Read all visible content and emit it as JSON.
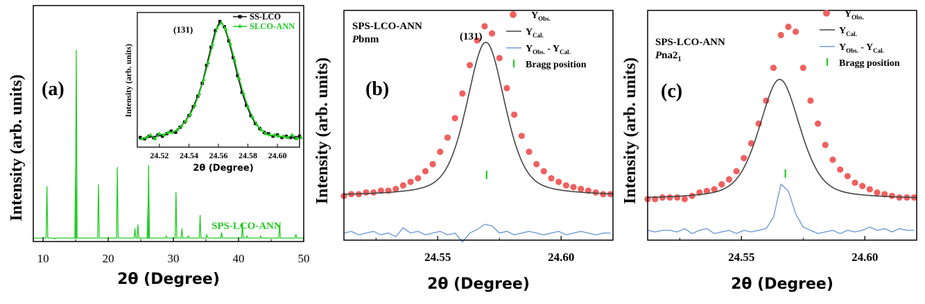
{
  "chart_data": [
    {
      "panel": "a",
      "type": "line",
      "panel_label": "(a)",
      "xlabel": "2θ (Degree)",
      "ylabel": "Intensity (arb. units)",
      "xlim": [
        8.5,
        50
      ],
      "xticks": [
        "10",
        "20",
        "30",
        "40",
        "50"
      ],
      "series_label": "SPS-LCO-ANN",
      "color": "#22cc22",
      "baseline": 2,
      "peaks": [
        {
          "x": 10.6,
          "y": 29
        },
        {
          "x": 11.8,
          "y": 1.5
        },
        {
          "x": 15.1,
          "y": 100
        },
        {
          "x": 15.0,
          "y": 40
        },
        {
          "x": 18.5,
          "y": 30
        },
        {
          "x": 21.4,
          "y": 39
        },
        {
          "x": 22.1,
          "y": 2
        },
        {
          "x": 24.1,
          "y": 7
        },
        {
          "x": 24.56,
          "y": 9
        },
        {
          "x": 26.2,
          "y": 40
        },
        {
          "x": 26.1,
          "y": 18
        },
        {
          "x": 28.9,
          "y": 3
        },
        {
          "x": 30.4,
          "y": 26
        },
        {
          "x": 31.3,
          "y": 7
        },
        {
          "x": 32.3,
          "y": 3
        },
        {
          "x": 34.1,
          "y": 14
        },
        {
          "x": 35.1,
          "y": 4
        },
        {
          "x": 37.4,
          "y": 5
        },
        {
          "x": 38.8,
          "y": 2
        },
        {
          "x": 40.6,
          "y": 10
        },
        {
          "x": 41.3,
          "y": 3
        },
        {
          "x": 43.4,
          "y": 3
        },
        {
          "x": 44.6,
          "y": 2
        },
        {
          "x": 46.3,
          "y": 9
        },
        {
          "x": 48.8,
          "y": 4
        }
      ],
      "inset": {
        "type": "line",
        "annotation": "(131)",
        "xlabel": "2θ (Degree)",
        "ylabel": "Intensity (arb. units)",
        "xlim": [
          24.505,
          24.615
        ],
        "xticks": [
          "24.52",
          "24.54",
          "24.56",
          "24.58",
          "24.60"
        ],
        "series": [
          {
            "name": "SS-LCO",
            "color": "#111111",
            "marker": "square",
            "x0": 24.507,
            "step": 0.003,
            "values": [
              0.1,
              0.09,
              0.11,
              0.1,
              0.12,
              0.11,
              0.13,
              0.15,
              0.14,
              0.18,
              0.22,
              0.27,
              0.34,
              0.42,
              0.52,
              0.66,
              0.8,
              0.93,
              1.0,
              0.96,
              0.85,
              0.72,
              0.58,
              0.45,
              0.35,
              0.27,
              0.21,
              0.17,
              0.14,
              0.13,
              0.11,
              0.12,
              0.1,
              0.11,
              0.1,
              0.1,
              0.11
            ]
          },
          {
            "name": "SLCO-ANN",
            "color": "#22cc22",
            "marker": "triangle",
            "x0": 24.508,
            "step": 0.003,
            "values": [
              0.09,
              0.1,
              0.12,
              0.09,
              0.13,
              0.12,
              0.14,
              0.14,
              0.16,
              0.19,
              0.23,
              0.28,
              0.35,
              0.44,
              0.55,
              0.68,
              0.82,
              0.95,
              0.99,
              0.94,
              0.83,
              0.7,
              0.56,
              0.44,
              0.34,
              0.26,
              0.2,
              0.16,
              0.13,
              0.12,
              0.12,
              0.11,
              0.11,
              0.1,
              0.12,
              0.09,
              0.1
            ]
          }
        ]
      }
    },
    {
      "panel": "b",
      "type": "line",
      "panel_label": "(b)",
      "title_line1": "SPS-LCO-ANN",
      "title_italic": "P",
      "title_rest": "bnm",
      "annotation": "(131)",
      "xlabel": "2θ (Degree)",
      "ylabel": "Intensity (arb. units)",
      "xlim": [
        24.512,
        24.621
      ],
      "ylim": [
        -0.25,
        1.05
      ],
      "xticks": [
        "24.55",
        "24.60"
      ],
      "tick_values": [
        24.55,
        24.6
      ],
      "bragg_position": 24.5698,
      "legend": {
        "obs_main": "Y",
        "obs_sub": "Obs.",
        "cal_main": "Y",
        "cal_sub": "Cal.",
        "diff_main1": "Y",
        "diff_sub1": "Obs.",
        "diff_sep": " - ",
        "diff_main2": "Y",
        "diff_sub2": "Cal.",
        "bragg": "Bragg position"
      },
      "colors": {
        "obs": "#f06060",
        "cal": "#444444",
        "diff": "#6f9ad8",
        "bragg": "#22cc22"
      },
      "calc": {
        "base": 0.0,
        "amp": 0.87,
        "center": 24.5695,
        "width": 0.0092
      },
      "x_obs": [
        24.512,
        24.515,
        24.518,
        24.521,
        24.524,
        24.527,
        24.53,
        24.533,
        24.536,
        24.539,
        24.542,
        24.545,
        24.548,
        24.551,
        24.554,
        24.557,
        24.56,
        24.563,
        24.566,
        24.569,
        24.572,
        24.575,
        24.578,
        24.581,
        24.584,
        24.587,
        24.59,
        24.593,
        24.596,
        24.599,
        24.602,
        24.605,
        24.608,
        24.611,
        24.614,
        24.617,
        24.62
      ],
      "y_obs": [
        0.0,
        0.01,
        0.01,
        0.02,
        0.02,
        0.03,
        0.03,
        0.04,
        0.06,
        0.08,
        0.1,
        0.14,
        0.18,
        0.25,
        0.33,
        0.44,
        0.58,
        0.74,
        0.88,
        0.96,
        0.92,
        0.78,
        0.61,
        0.46,
        0.34,
        0.25,
        0.18,
        0.14,
        0.1,
        0.08,
        0.06,
        0.05,
        0.04,
        0.03,
        0.02,
        0.01,
        0.01
      ],
      "diff_offset": -0.21,
      "y_diff": [
        0.0,
        0.01,
        -0.01,
        0.0,
        0.01,
        -0.01,
        0.0,
        -0.02,
        0.03,
        0.0,
        0.01,
        -0.01,
        0.0,
        0.01,
        -0.01,
        0.0,
        -0.05,
        0.0,
        0.02,
        0.05,
        0.04,
        0.0,
        0.01,
        -0.01,
        0.0,
        0.01,
        0.0,
        -0.01,
        0.0,
        0.01,
        -0.01,
        0.0,
        0.01,
        0.0,
        -0.01,
        0.0,
        0.0
      ]
    },
    {
      "panel": "c",
      "type": "line",
      "panel_label": "(c)",
      "title_line1": "SPS-LCO-ANN",
      "title_italic": "P",
      "title_rest": "na2",
      "title_sub": "1",
      "xlabel": "2θ (Degree)",
      "ylabel": "Intensity (arb. units)",
      "xlim": [
        24.512,
        24.621
      ],
      "ylim": [
        -0.25,
        1.15
      ],
      "xticks": [
        "24.55",
        "24.60"
      ],
      "tick_values": [
        24.55,
        24.6
      ],
      "bragg_position": 24.5678,
      "legend": {
        "obs_main": "Y",
        "obs_sub": "Obs.",
        "cal_main": "Y",
        "cal_sub": "Cal.",
        "diff_main1": "Y",
        "diff_sub1": "Obs.",
        "diff_sep": " - ",
        "diff_main2": "Y",
        "diff_sub2": "Cal.",
        "bragg": "Bragg position"
      },
      "colors": {
        "obs": "#f06060",
        "cal": "#444444",
        "diff": "#6f9ad8",
        "bragg": "#22cc22"
      },
      "calc": {
        "base": 0.0,
        "amp": 0.73,
        "center": 24.5655,
        "width": 0.0098
      },
      "x_obs": [
        24.512,
        24.515,
        24.518,
        24.521,
        24.524,
        24.527,
        24.53,
        24.533,
        24.536,
        24.539,
        24.542,
        24.545,
        24.548,
        24.551,
        24.554,
        24.557,
        24.56,
        24.563,
        24.566,
        24.569,
        24.572,
        24.575,
        24.578,
        24.581,
        24.584,
        24.587,
        24.59,
        24.593,
        24.596,
        24.599,
        24.602,
        24.605,
        24.608,
        24.611,
        24.614,
        24.617,
        24.62
      ],
      "y_obs": [
        0.0,
        0.0,
        0.01,
        0.01,
        0.01,
        0.0,
        0.02,
        0.04,
        0.05,
        0.06,
        0.09,
        0.12,
        0.17,
        0.25,
        0.34,
        0.46,
        0.6,
        0.8,
        1.0,
        1.05,
        1.02,
        0.8,
        0.6,
        0.46,
        0.33,
        0.24,
        0.18,
        0.14,
        0.1,
        0.08,
        0.06,
        0.04,
        0.03,
        0.02,
        0.01,
        0.01,
        0.01
      ],
      "diff_offset": -0.19,
      "y_diff": [
        0.0,
        -0.01,
        0.0,
        0.0,
        -0.01,
        0.01,
        -0.02,
        0.0,
        0.01,
        -0.02,
        -0.01,
        0.0,
        -0.02,
        0.0,
        -0.01,
        0.0,
        0.01,
        0.08,
        0.28,
        0.24,
        0.1,
        0.02,
        0.0,
        -0.02,
        -0.01,
        0.0,
        -0.02,
        0.0,
        -0.01,
        0.0,
        0.02,
        0.0,
        0.01,
        -0.01,
        0.01,
        0.0,
        0.0
      ]
    }
  ]
}
